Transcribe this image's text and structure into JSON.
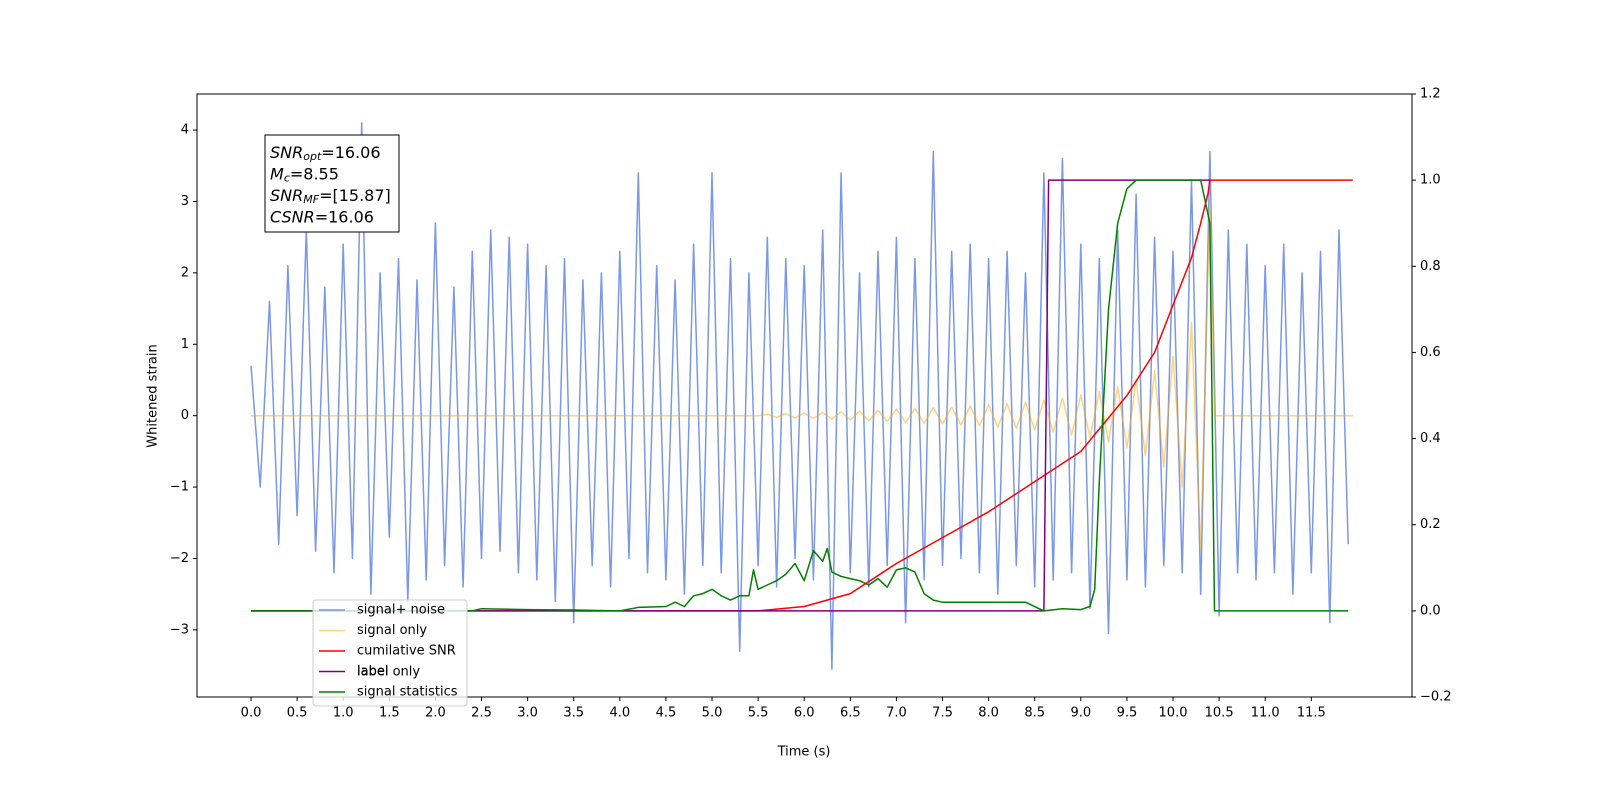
{
  "chart_data": {
    "type": "line",
    "xlabel": "Time (s)",
    "ylabel": "Whitened strain",
    "xlim": [
      -0.586,
      12.592
    ],
    "ylim": [
      -3.94,
      4.505
    ],
    "y2lim": [
      -0.2,
      1.2
    ],
    "xticks": [
      {
        "value": 0,
        "label": "0.0"
      },
      0.5,
      {
        "value": 1,
        "label": "1.0"
      },
      1.5,
      {
        "value": 2,
        "label": "2.0"
      },
      2.5,
      {
        "value": 3,
        "label": "3.0"
      },
      3.5,
      {
        "value": 4,
        "label": "4.0"
      },
      4.5,
      {
        "value": 5,
        "label": "5.0"
      },
      5.5,
      {
        "value": 6,
        "label": "6.0"
      },
      6.5,
      {
        "value": 7,
        "label": "7.0"
      },
      7.5,
      {
        "value": 8,
        "label": "8.0"
      },
      8.5,
      {
        "value": 9,
        "label": "9.0"
      },
      9.5,
      {
        "value": 10,
        "label": "10.0"
      },
      10.5,
      {
        "value": 11,
        "label": "11.0"
      },
      11.5
    ],
    "yticks": [
      {
        "value": -3,
        "label": "−3"
      },
      {
        "value": -2,
        "label": "−2"
      },
      {
        "value": -1,
        "label": "−1"
      },
      0,
      1,
      2,
      3,
      4
    ],
    "y2ticks": [
      {
        "value": -0.2,
        "label": "−0.2"
      },
      {
        "value": 0,
        "label": "0.0"
      },
      0.2,
      0.4,
      0.6,
      0.8,
      {
        "value": 1,
        "label": "1.0"
      },
      1.2
    ],
    "grid": false,
    "legend_loc": "lower left",
    "legend_shadow_text": "label only",
    "annotation_lines": [
      {
        "symbol": "SNR",
        "sub": "opt",
        "text": "=16.06"
      },
      {
        "symbol": "M",
        "sub": "c",
        "text": "=8.55"
      },
      {
        "symbol": "SNR",
        "sub": "MF",
        "text": "=[15.87]"
      },
      {
        "symbol": "CSNR",
        "sub": "",
        "text": "=16.06"
      }
    ],
    "series": [
      {
        "name": "signal+ noise",
        "color": "#6d8ce8",
        "axis": "y",
        "x": [
          0,
          0.1,
          0.2,
          0.3,
          0.4,
          0.5,
          0.6,
          0.7,
          0.8,
          0.9,
          1,
          1.1,
          1.2,
          1.3,
          1.4,
          1.5,
          1.6,
          1.7,
          1.8,
          1.9,
          2,
          2.1,
          2.2,
          2.3,
          2.4,
          2.5,
          2.6,
          2.7,
          2.8,
          2.9,
          3,
          3.1,
          3.2,
          3.3,
          3.4,
          3.5,
          3.6,
          3.7,
          3.8,
          3.9,
          4,
          4.1,
          4.2,
          4.3,
          4.4,
          4.5,
          4.6,
          4.7,
          4.8,
          4.9,
          5,
          5.1,
          5.2,
          5.3,
          5.4,
          5.5,
          5.6,
          5.7,
          5.8,
          5.9,
          6,
          6.1,
          6.2,
          6.3,
          6.4,
          6.5,
          6.6,
          6.7,
          6.8,
          6.9,
          7,
          7.1,
          7.2,
          7.3,
          7.4,
          7.5,
          7.6,
          7.7,
          7.8,
          7.9,
          8,
          8.1,
          8.2,
          8.3,
          8.4,
          8.5,
          8.6,
          8.7,
          8.8,
          8.9,
          9,
          9.1,
          9.2,
          9.3,
          9.4,
          9.5,
          9.6,
          9.7,
          9.8,
          9.9,
          10,
          10.1,
          10.2,
          10.3,
          10.4,
          10.5,
          10.6,
          10.7,
          10.8,
          10.9,
          11,
          11.1,
          11.2,
          11.3,
          11.4,
          11.5,
          11.6,
          11.7,
          11.8,
          11.9
        ],
        "values": [
          0.7,
          -1.0,
          1.6,
          -1.8,
          2.1,
          -1.4,
          2.6,
          -1.9,
          1.8,
          -2.2,
          2.4,
          -2.0,
          4.1,
          -2.5,
          2.0,
          -1.7,
          2.2,
          -2.6,
          1.9,
          -2.3,
          2.7,
          -2.1,
          1.8,
          -2.4,
          2.3,
          -2.0,
          2.6,
          -1.9,
          2.5,
          -2.2,
          2.4,
          -2.3,
          2.1,
          -2.6,
          2.2,
          -2.9,
          1.9,
          -2.1,
          2.0,
          -2.4,
          2.3,
          -2.0,
          3.4,
          -2.2,
          2.1,
          -2.3,
          1.9,
          -2.5,
          2.4,
          -2.1,
          3.4,
          -2.2,
          2.2,
          -3.3,
          2.0,
          -2.1,
          2.5,
          -2.4,
          2.2,
          -2.0,
          2.1,
          -2.3,
          2.6,
          -3.55,
          3.4,
          -2.2,
          2.0,
          -2.4,
          2.3,
          -2.1,
          2.5,
          -2.9,
          2.2,
          -2.3,
          3.7,
          -2.1,
          2.3,
          -2.0,
          2.4,
          -2.2,
          2.2,
          -2.5,
          2.3,
          -2.1,
          2.0,
          -2.4,
          3.4,
          -2.3,
          3.6,
          -2.2,
          2.4,
          -2.7,
          2.2,
          -3.05,
          2.6,
          -2.3,
          3.1,
          -2.4,
          2.5,
          -2.1,
          2.3,
          -2.2,
          3.3,
          -2.5,
          3.7,
          -2.8,
          2.6,
          -2.2,
          2.4,
          -2.3,
          2.1,
          -2.2,
          2.4,
          -2.5,
          2.0,
          -2.2,
          2.3,
          -2.9,
          2.6,
          -1.8
        ]
      },
      {
        "name": "signal only",
        "color": "#ffa500",
        "axis": "y",
        "x": [
          0,
          5.5,
          5.6,
          5.7,
          5.8,
          5.9,
          6,
          6.1,
          6.2,
          6.3,
          6.4,
          6.5,
          6.6,
          6.7,
          6.8,
          6.9,
          7,
          7.1,
          7.2,
          7.3,
          7.4,
          7.5,
          7.6,
          7.7,
          7.8,
          7.9,
          8,
          8.1,
          8.2,
          8.3,
          8.4,
          8.5,
          8.6,
          8.7,
          8.8,
          8.9,
          9,
          9.1,
          9.2,
          9.3,
          9.4,
          9.5,
          9.6,
          9.7,
          9.8,
          9.9,
          10,
          10.1,
          10.2,
          10.3,
          10.4,
          10.45,
          11.95
        ],
        "values": [
          0,
          0,
          0.02,
          -0.025,
          0.03,
          -0.03,
          0.035,
          -0.04,
          0.045,
          -0.05,
          0.055,
          -0.06,
          0.065,
          -0.07,
          0.075,
          -0.08,
          0.09,
          -0.095,
          0.1,
          -0.105,
          0.11,
          -0.115,
          0.12,
          -0.13,
          0.135,
          -0.14,
          0.15,
          -0.16,
          0.17,
          -0.18,
          0.19,
          -0.2,
          0.22,
          -0.23,
          0.25,
          -0.27,
          0.29,
          -0.31,
          0.34,
          -0.37,
          0.41,
          -0.45,
          0.5,
          -0.56,
          0.63,
          -0.72,
          0.83,
          -1.0,
          1.3,
          -1.9,
          3.0,
          0,
          0
        ]
      },
      {
        "name": "cumilative SNR",
        "color": "#ff0000",
        "axis": "y2",
        "x": [
          0,
          5.5,
          6,
          6.5,
          7,
          7.5,
          8,
          8.5,
          9,
          9.5,
          9.8,
          10,
          10.2,
          10.3,
          10.38,
          10.4,
          11.95
        ],
        "values": [
          0,
          0,
          0.01,
          0.04,
          0.11,
          0.17,
          0.23,
          0.3,
          0.37,
          0.5,
          0.6,
          0.71,
          0.82,
          0.9,
          0.97,
          1,
          1
        ]
      },
      {
        "name": "label",
        "color": "#800080",
        "axis": "y2",
        "x": [
          0,
          8.6,
          8.65,
          10.4
        ],
        "values": [
          0,
          0,
          1,
          1
        ]
      },
      {
        "name": "signal statistics",
        "color": "#008000",
        "axis": "y2",
        "x": [
          0,
          2.4,
          2.5,
          3,
          3.5,
          4,
          4.2,
          4.5,
          4.6,
          4.7,
          4.8,
          4.9,
          5,
          5.1,
          5.2,
          5.3,
          5.4,
          5.45,
          5.5,
          5.6,
          5.7,
          5.8,
          5.9,
          6,
          6.1,
          6.2,
          6.25,
          6.3,
          6.4,
          6.5,
          6.6,
          6.7,
          6.8,
          6.9,
          7,
          7.1,
          7.2,
          7.3,
          7.4,
          7.5,
          7.6,
          7.8,
          8,
          8.2,
          8.4,
          8.6,
          8.8,
          9,
          9.1,
          9.15,
          9.2,
          9.3,
          9.4,
          9.5,
          9.6,
          9.8,
          10,
          10.3,
          10.4,
          10.45,
          10.5,
          11.9
        ],
        "values": [
          0,
          0,
          0.005,
          0.003,
          0.002,
          0,
          0.008,
          0.01,
          0.02,
          0.01,
          0.035,
          0.04,
          0.05,
          0.035,
          0.025,
          0.035,
          0.035,
          0.095,
          0.05,
          0.06,
          0.07,
          0.085,
          0.11,
          0.07,
          0.14,
          0.115,
          0.145,
          0.09,
          0.08,
          0.075,
          0.07,
          0.06,
          0.075,
          0.055,
          0.095,
          0.1,
          0.09,
          0.04,
          0.025,
          0.02,
          0.02,
          0.02,
          0.02,
          0.02,
          0.02,
          0,
          0.005,
          0.003,
          0.01,
          0.05,
          0.3,
          0.7,
          0.9,
          0.98,
          1,
          1,
          1,
          1,
          0.9,
          0,
          0,
          0
        ]
      }
    ]
  }
}
